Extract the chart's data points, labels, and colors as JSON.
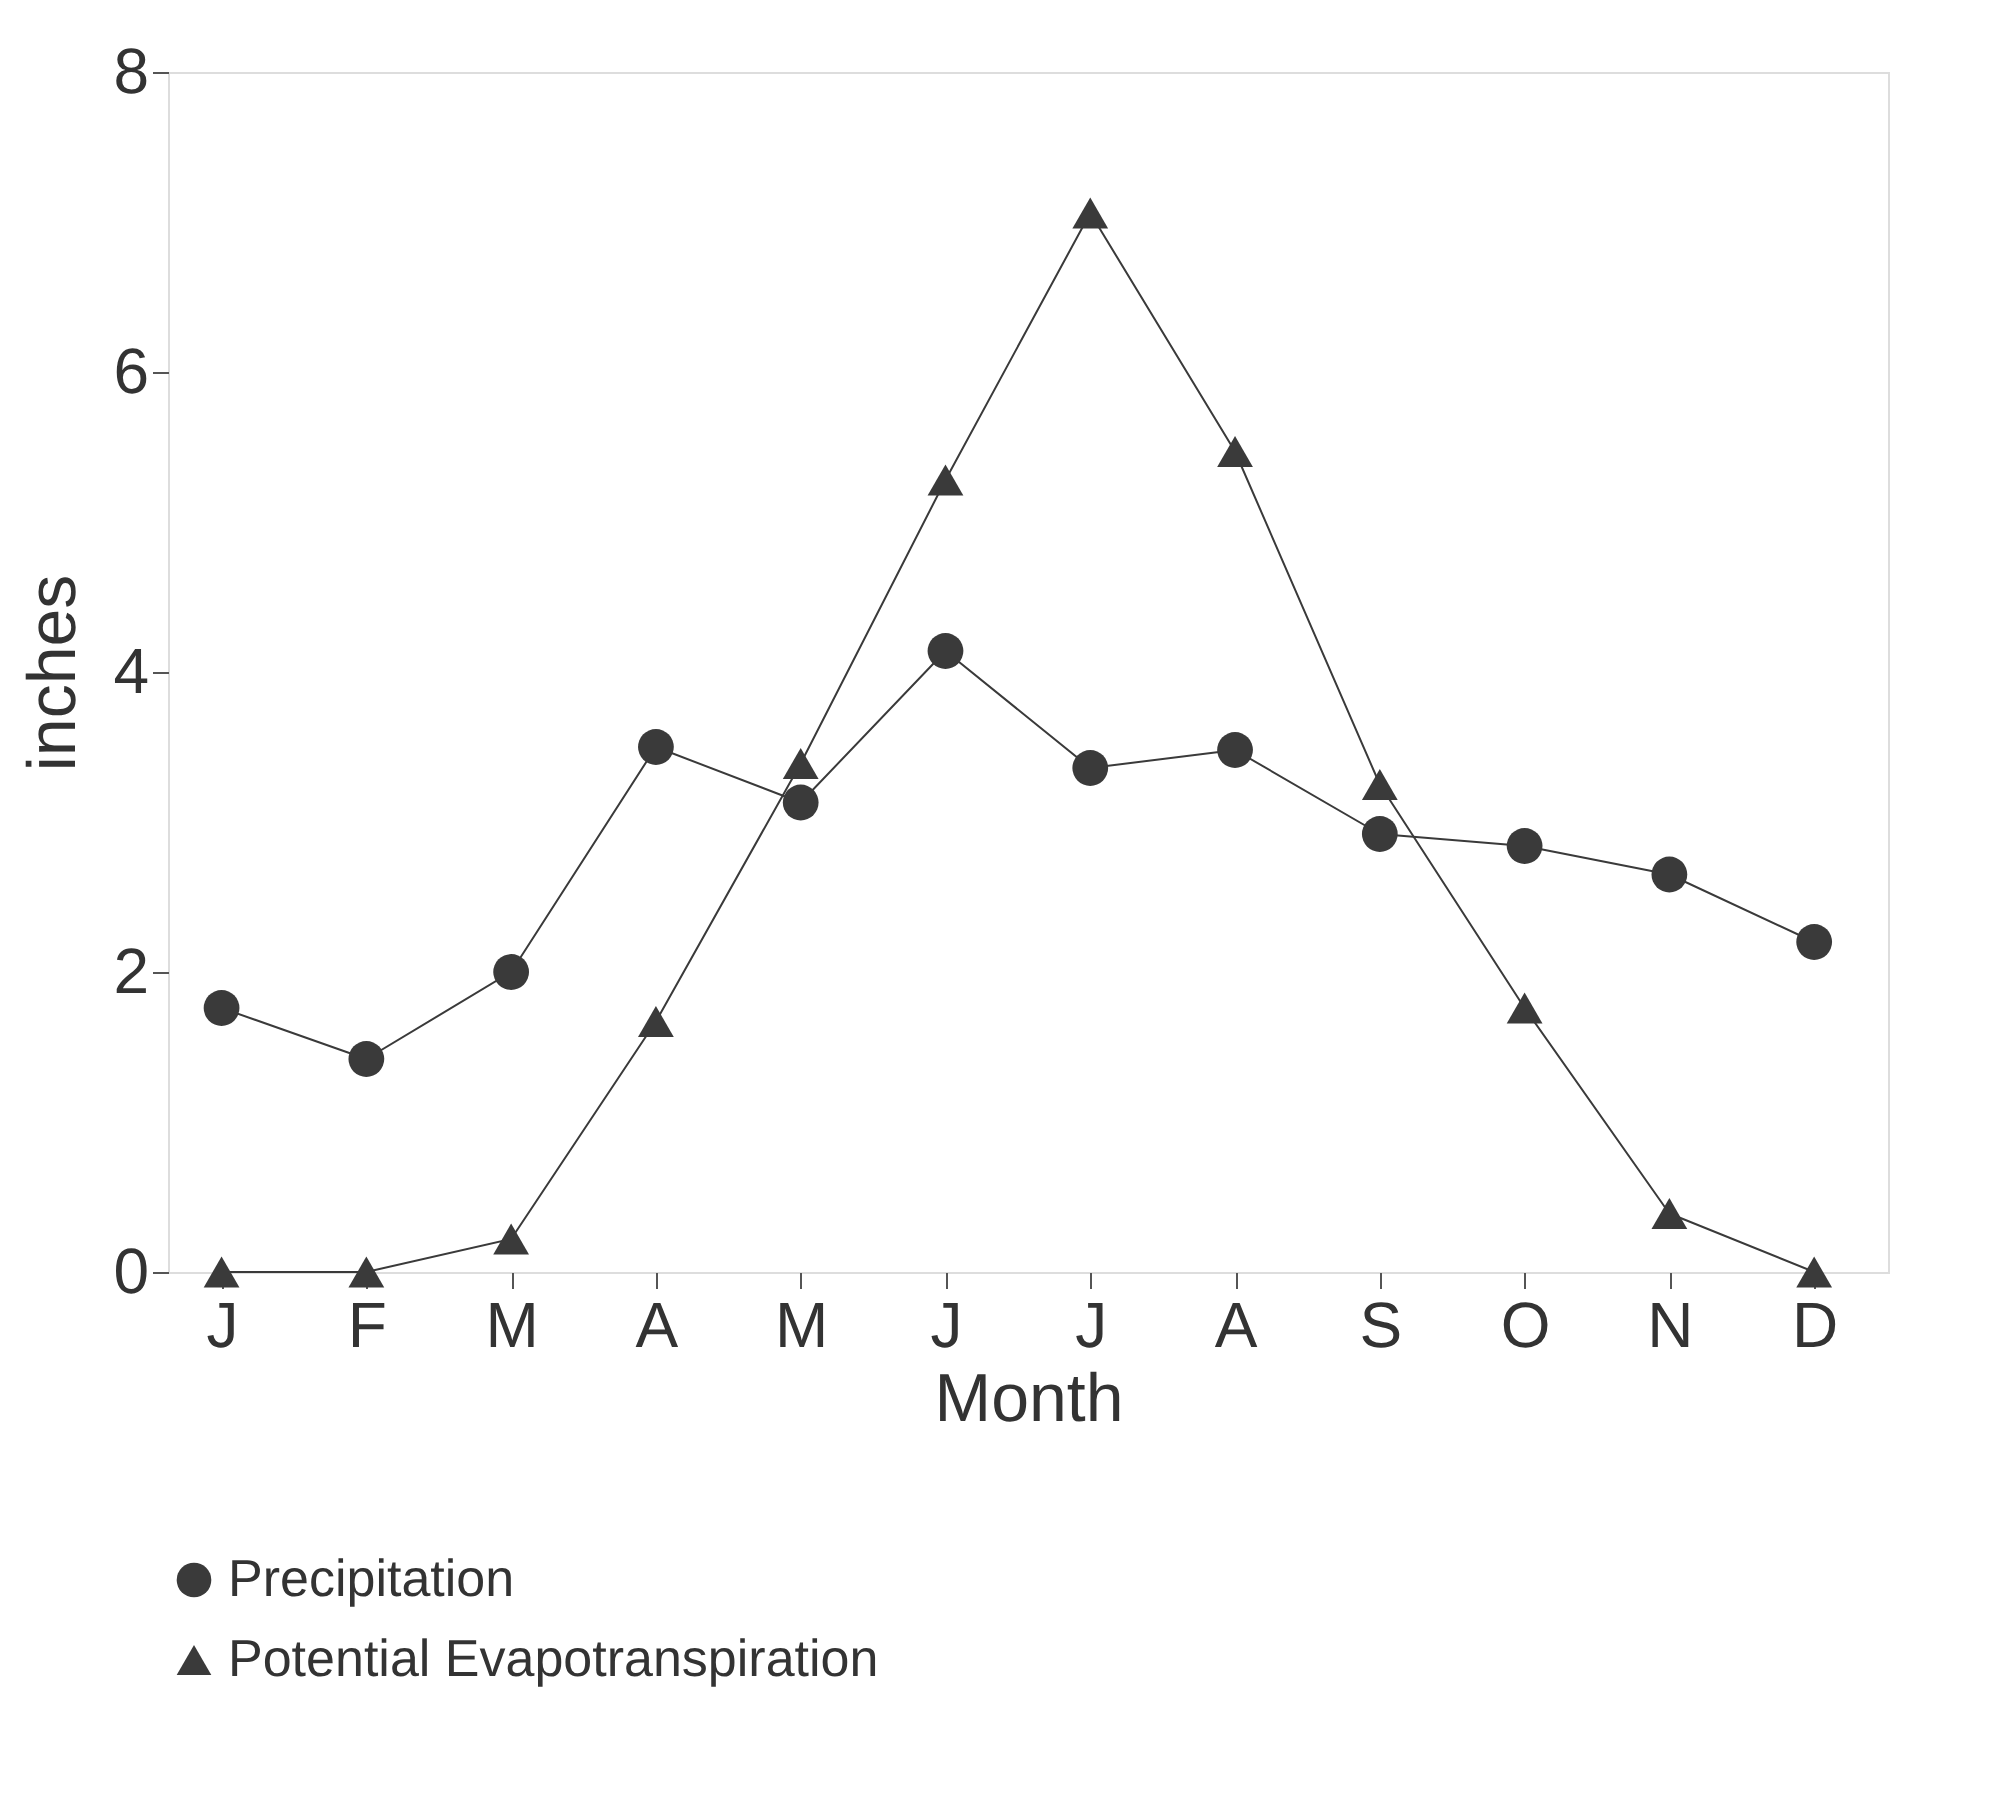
{
  "chart_data": {
    "type": "line",
    "xlabel": "Month",
    "ylabel": "inches",
    "categories": [
      "J",
      "F",
      "M",
      "A",
      "M",
      "J",
      "J",
      "A",
      "S",
      "O",
      "N",
      "D"
    ],
    "ylim": [
      0,
      8
    ],
    "yticks": [
      0,
      2,
      4,
      6,
      8
    ],
    "grid": false,
    "legend": "bottom",
    "series": [
      {
        "name": "Precipitation",
        "color": "#3a3a3a",
        "marker": "circle",
        "values": [
          1.76,
          1.42,
          2.0,
          3.5,
          3.13,
          4.14,
          3.36,
          3.48,
          2.92,
          2.84,
          2.65,
          2.2
        ]
      },
      {
        "name": "Potential Evapotranspiration",
        "color": "#3a3a3a",
        "marker": "triangle",
        "values": [
          0,
          0,
          0.22,
          1.67,
          3.39,
          5.28,
          7.06,
          5.47,
          3.25,
          1.76,
          0.39,
          0
        ]
      }
    ]
  }
}
